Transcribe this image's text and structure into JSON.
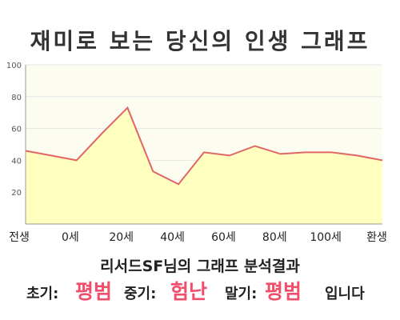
{
  "title": "재미로 보는 당신의 인생 그래프",
  "chart_data": {
    "type": "area",
    "y_ticks": [
      "100",
      "80",
      "60",
      "40",
      "20"
    ],
    "ylim": [
      0,
      100
    ],
    "x_tick_labels": [
      "전생",
      "0세",
      "20세",
      "40세",
      "60세",
      "80세",
      "100세",
      "환생"
    ],
    "points": [
      46,
      43,
      40,
      57,
      73,
      33,
      25,
      45,
      43,
      49,
      44,
      45,
      45,
      43,
      40
    ],
    "grid": true,
    "colors": {
      "line": "#e06666",
      "fill": "#ffffc0",
      "plot_bg": "#fcfcf0",
      "grid": "#e6e6e6"
    }
  },
  "result": {
    "heading": "리서드SF님의 그래프 분석결과",
    "early_label": "초기:",
    "early_value": "평범",
    "mid_label": "중기:",
    "mid_value": "험난",
    "late_label": "말기:",
    "late_value": "평범",
    "suffix": "입니다"
  }
}
